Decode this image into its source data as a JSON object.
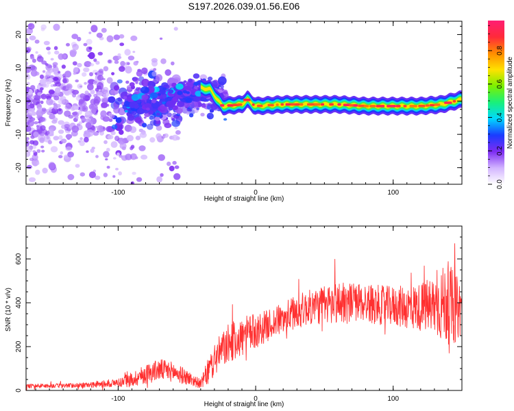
{
  "title": "S197.2026.039.01.56.E06",
  "chart_data": [
    {
      "type": "heatmap",
      "name": "spectrogram",
      "xlabel": "Height of straight line (km)",
      "ylabel": "Frequency (Hz)",
      "xlim": [
        -167,
        150
      ],
      "ylim": [
        -25,
        24
      ],
      "xticks": [
        -100,
        0,
        100
      ],
      "yticks": [
        -20,
        -10,
        0,
        10,
        20
      ],
      "colorbar": {
        "label": "Normalized spectral amplitude",
        "range": [
          0.0,
          0.98
        ],
        "ticks": [
          0.0,
          0.2,
          0.4,
          0.6,
          0.8
        ],
        "colors": [
          "#ffffff",
          "#d2b4ff",
          "#7d2cf2",
          "#1a3cff",
          "#00d8ff",
          "#19f07a",
          "#7cf000",
          "#ffe100",
          "#ff8c00",
          "#ff2a3a",
          "#ff1e73"
        ]
      },
      "ridge": {
        "x": [
          -40,
          -33,
          -28,
          -24,
          -10,
          -6,
          -2,
          0,
          20,
          40,
          60,
          80,
          100,
          120,
          135,
          150
        ],
        "frequency": [
          4.0,
          3.5,
          0.5,
          -1.5,
          -1.0,
          0.5,
          -1.0,
          -1.5,
          -1.0,
          -1.0,
          -1.0,
          -1.5,
          -1.5,
          -1.5,
          -1.0,
          0.5
        ]
      }
    },
    {
      "type": "line",
      "name": "snr",
      "xlabel": "Height of straight line (km)",
      "ylabel": "SNR (10 * v/v)",
      "xlim": [
        -167,
        150
      ],
      "ylim": [
        0,
        750
      ],
      "xticks": [
        -100,
        0,
        100
      ],
      "yticks": [
        0,
        200,
        400,
        600
      ],
      "color": "#ff3030",
      "envelope": {
        "x": [
          -167,
          -140,
          -120,
          -100,
          -90,
          -80,
          -70,
          -60,
          -50,
          -40,
          -35,
          -30,
          -25,
          -20,
          -15,
          -10,
          -5,
          0,
          10,
          20,
          30,
          40,
          50,
          60,
          70,
          80,
          90,
          100,
          110,
          120,
          130,
          135,
          140,
          145,
          150
        ],
        "mean": [
          20,
          22,
          25,
          35,
          50,
          75,
          95,
          85,
          60,
          30,
          80,
          140,
          180,
          210,
          230,
          240,
          260,
          270,
          300,
          330,
          360,
          380,
          390,
          400,
          405,
          400,
          390,
          385,
          380,
          380,
          390,
          390,
          400,
          370,
          380
        ],
        "amplitude": [
          10,
          10,
          12,
          20,
          35,
          45,
          50,
          45,
          35,
          20,
          60,
          80,
          80,
          90,
          90,
          90,
          85,
          80,
          70,
          70,
          80,
          80,
          90,
          100,
          90,
          90,
          90,
          90,
          100,
          110,
          140,
          170,
          190,
          160,
          120
        ]
      }
    }
  ]
}
